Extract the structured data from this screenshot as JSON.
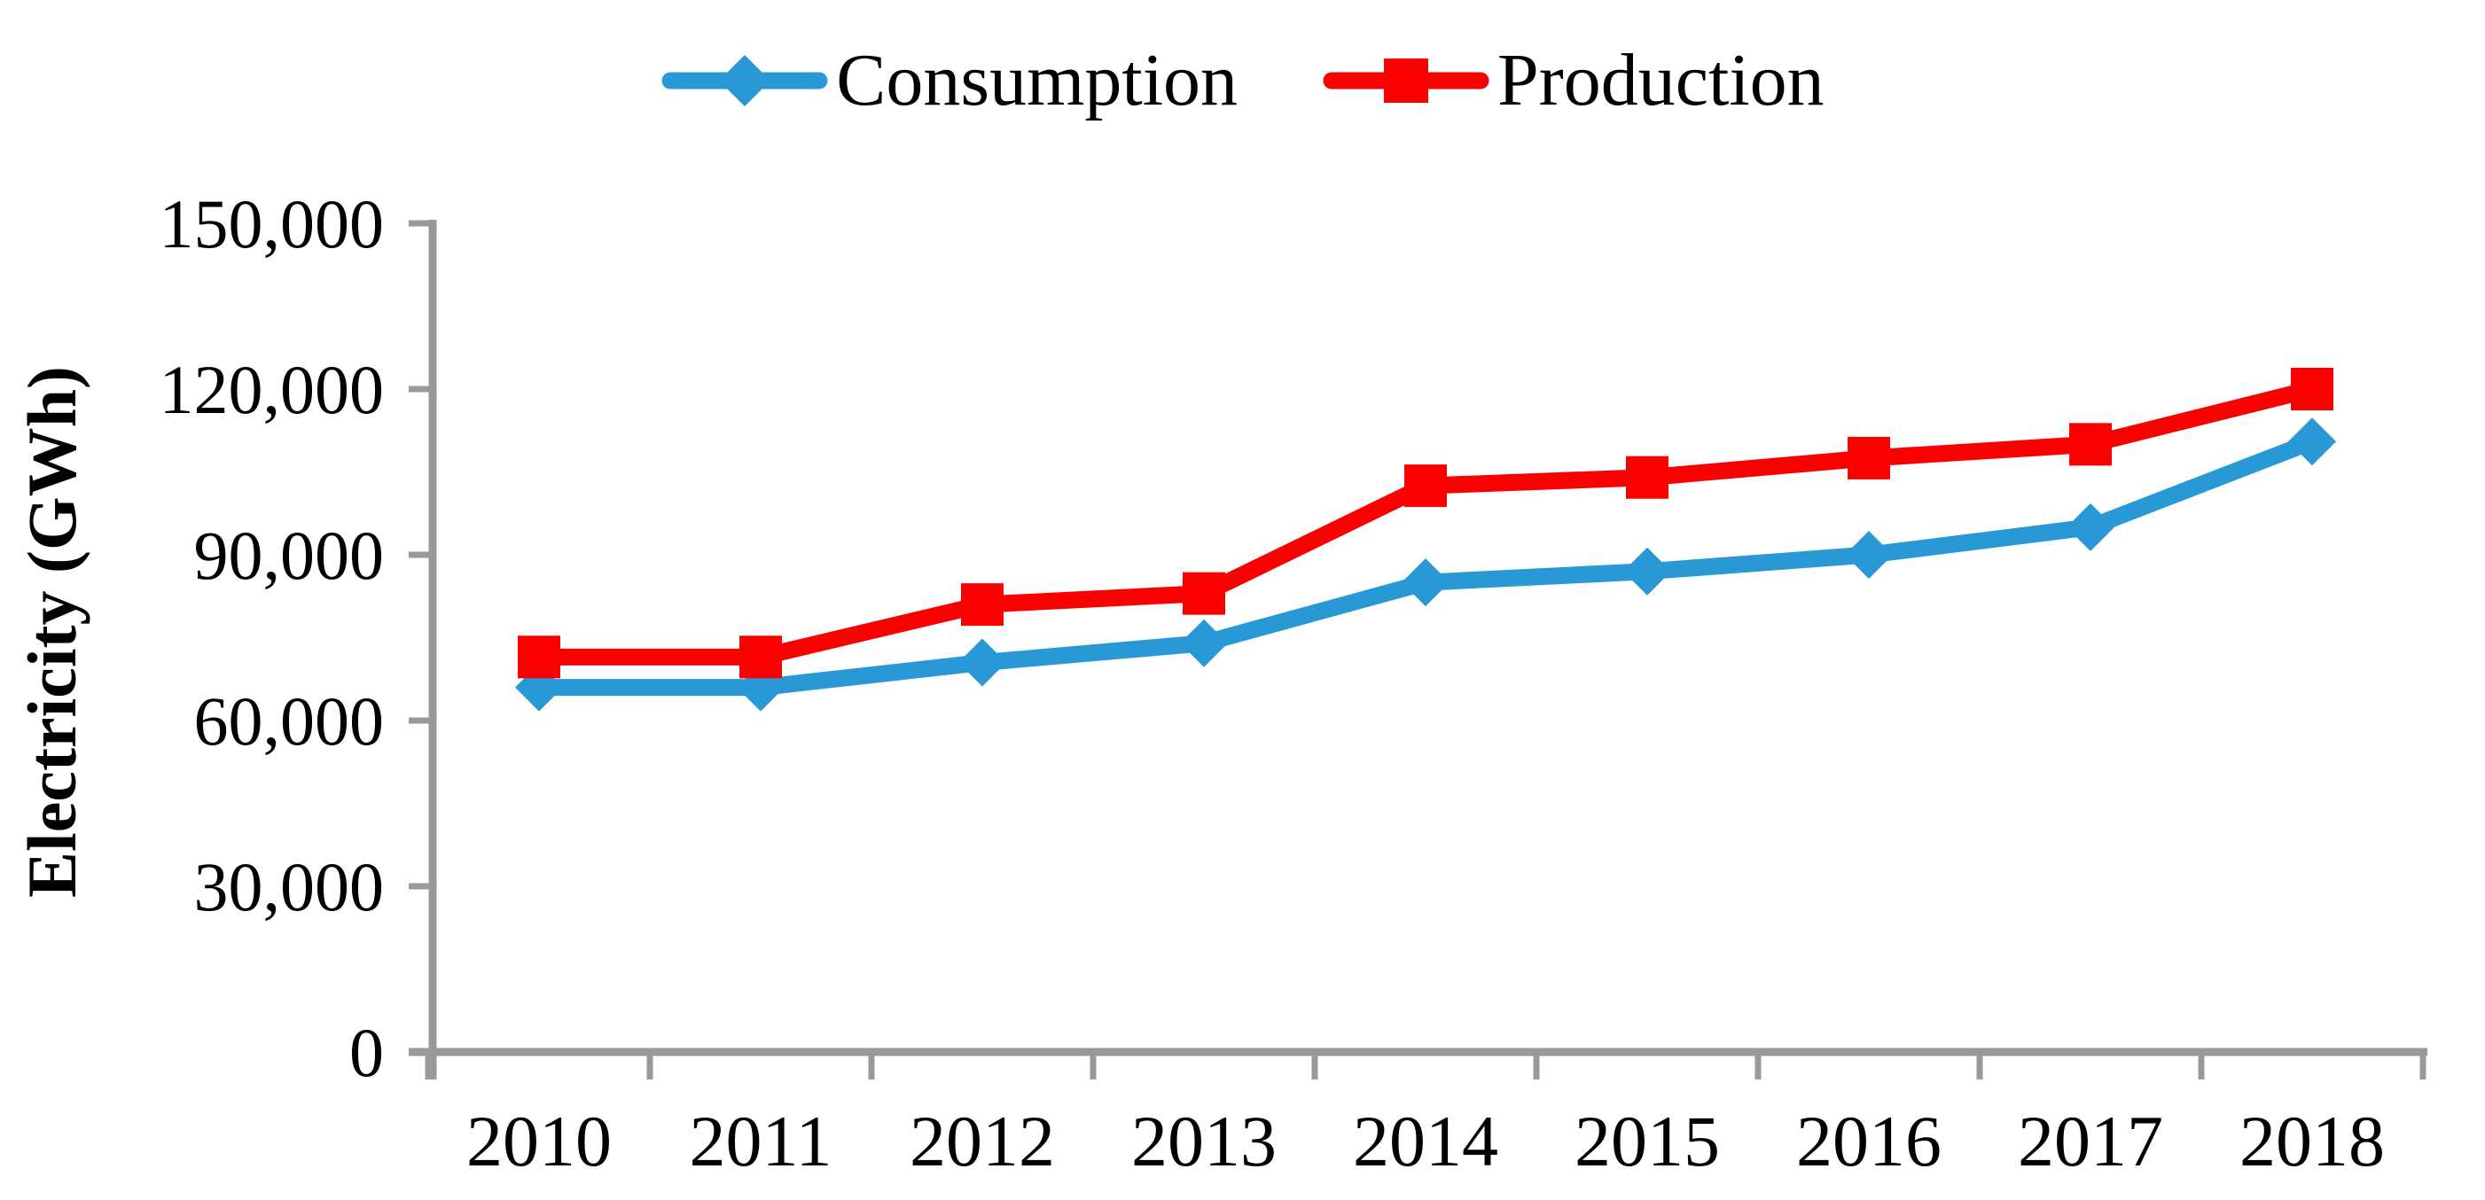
{
  "chart_data": {
    "type": "line",
    "title": "",
    "xlabel": "",
    "ylabel": "Electricity (GWh)",
    "categories": [
      "2010",
      "2011",
      "2012",
      "2013",
      "2014",
      "2015",
      "2016",
      "2017",
      "2018"
    ],
    "series": [
      {
        "name": "Consumption",
        "color": "#2899D4",
        "marker": "diamond",
        "values": [
          66000,
          66000,
          70500,
          74000,
          85000,
          87000,
          90000,
          95000,
          110500
        ]
      },
      {
        "name": "Production",
        "color": "#FB0000",
        "marker": "square",
        "values": [
          71500,
          71500,
          81000,
          83000,
          102500,
          104000,
          107500,
          110000,
          120000
        ]
      }
    ],
    "ylim": [
      0,
      150000
    ],
    "ytick_step": 30000,
    "ytick_labels": [
      "0",
      "30,000",
      "60,000",
      "90,000",
      "120,000",
      "150,000"
    ],
    "legend_position": "top",
    "grid": false,
    "axis_color": "#999999",
    "text_color": "#000000"
  }
}
